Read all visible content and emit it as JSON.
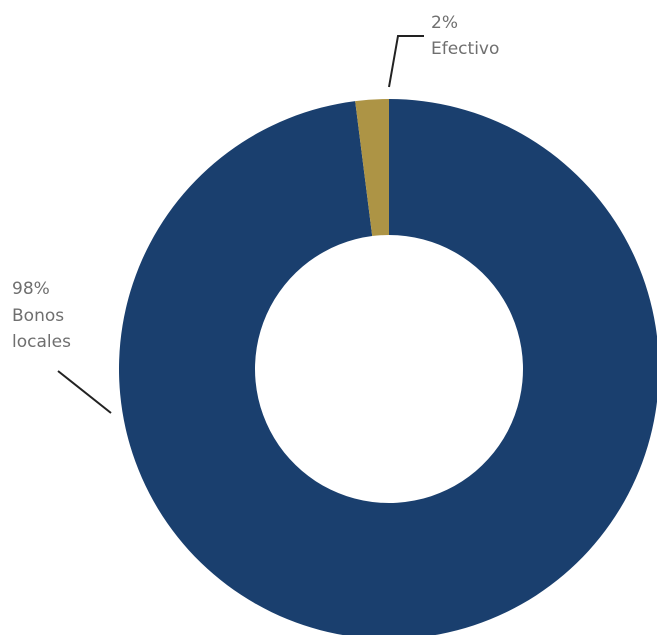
{
  "chart_data": {
    "type": "pie",
    "variant": "donut",
    "unit": "%",
    "slices": [
      {
        "label_lines": [
          "98%",
          "Bonos",
          "locales"
        ],
        "category": "Bonos locales",
        "value": 98,
        "color": "#1a3f6e"
      },
      {
        "label_lines": [
          "2%",
          "Efectivo"
        ],
        "category": "Efectivo",
        "value": 2,
        "color": "#ad9445"
      }
    ],
    "start_angle": "12 o'clock",
    "direction": "clockwise",
    "legend": "none"
  }
}
